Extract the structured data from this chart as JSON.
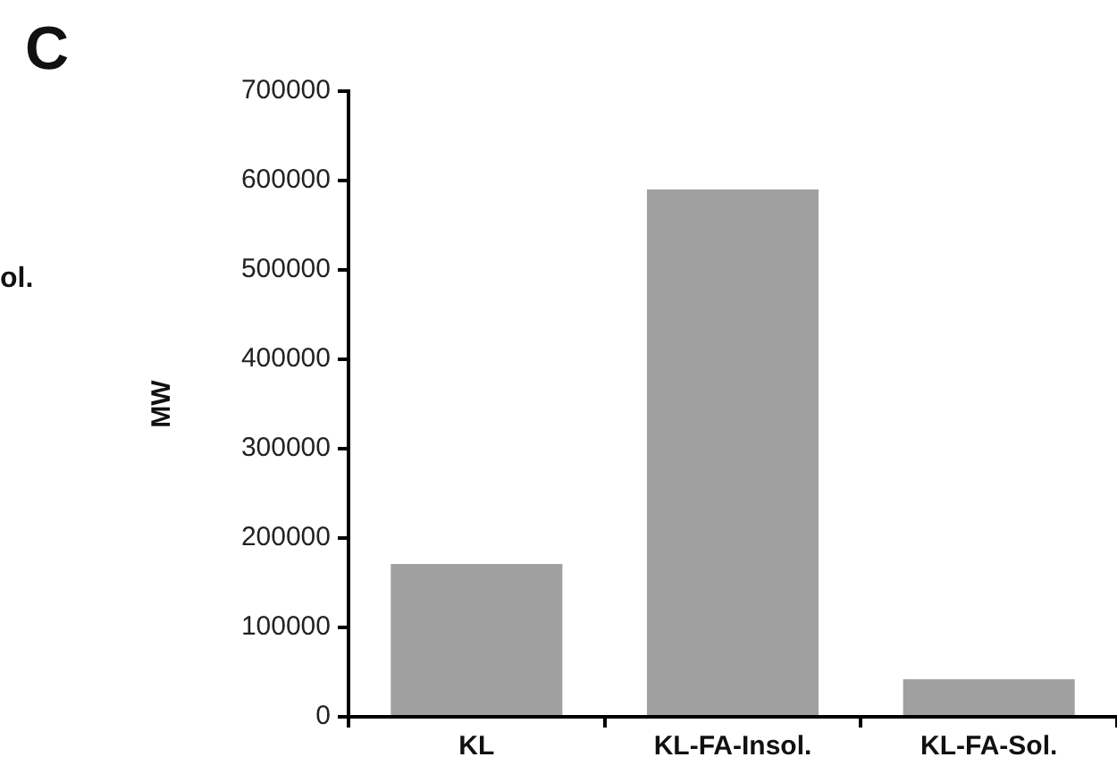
{
  "chart_data": {
    "type": "bar",
    "title": "C",
    "ylabel": "MW",
    "annotations": [
      "ol."
    ],
    "categories": [
      "KL",
      "KL-FA-Insol.",
      "KL-FA-Sol."
    ],
    "values": [
      171000,
      590000,
      42000
    ],
    "color": "#a0a0a0",
    "ylim": [
      0,
      700000
    ],
    "yticks": [
      0,
      100000,
      200000,
      300000,
      400000,
      500000,
      600000,
      700000
    ],
    "grid": false,
    "legend": false
  }
}
